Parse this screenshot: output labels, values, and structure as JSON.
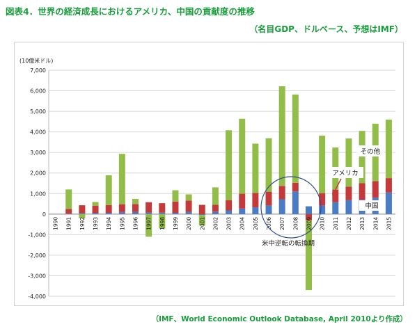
{
  "title": "図表4．世界の経済成長におけるアメリカ、中国の貢献度の推移",
  "subtitle": "（名目GDP、ドルベース、予想はIMF）",
  "source": "（IMF、World Economic Outlook Database, April 2010より作成）",
  "colors": {
    "china": "#4a7cc4",
    "america": "#c43a3a",
    "other": "#92bd48",
    "accent": "#1a9c3c",
    "circle": "#2f4d8a"
  },
  "chart_data": {
    "type": "bar",
    "stacked": true,
    "ylabel": "(10億米ドル)",
    "ylim": [
      -4000,
      7000
    ],
    "yticks": [
      7000,
      6000,
      5000,
      4000,
      3000,
      2000,
      1000,
      0,
      -1000,
      -2000,
      -3000,
      -4000
    ],
    "ytick_labels": [
      "7,000",
      "6,000",
      "5,000",
      "4,000",
      "3,000",
      "2,000",
      "1,000",
      "0",
      "-1,000",
      "-2,000",
      "-3,000",
      "-4,000"
    ],
    "grid": true,
    "categories": [
      "1990",
      "1991",
      "1992",
      "1993",
      "1994",
      "1995",
      "1996",
      "1997",
      "1998",
      "1999",
      "2000",
      "2001",
      "2002",
      "2003",
      "2004",
      "2005",
      "2006",
      "2007",
      "2008",
      "2009",
      "2010",
      "2011",
      "2012",
      "2013",
      "2014",
      "2015"
    ],
    "series": [
      {
        "name": "中国",
        "values": [
          0,
          20,
          40,
          50,
          60,
          100,
          110,
          80,
          70,
          60,
          110,
          -50,
          120,
          180,
          270,
          330,
          420,
          720,
          1100,
          380,
          420,
          580,
          680,
          700,
          800,
          1050
        ]
      },
      {
        "name": "アメリカ",
        "values": [
          0,
          230,
          390,
          360,
          380,
          380,
          380,
          500,
          460,
          550,
          550,
          450,
          330,
          500,
          720,
          700,
          670,
          650,
          420,
          -300,
          600,
          610,
          650,
          800,
          800,
          700
        ]
      },
      {
        "name": "その他",
        "values": [
          0,
          950,
          -200,
          180,
          1450,
          2450,
          250,
          -1100,
          -700,
          550,
          300,
          -500,
          850,
          3400,
          3650,
          2400,
          2600,
          4850,
          4300,
          -3400,
          2800,
          2050,
          2350,
          2550,
          2800,
          2850
        ]
      }
    ],
    "annotations": [
      "米中逆転の転換期"
    ],
    "series_labels": [
      "その他",
      "アメリカ",
      "中国"
    ]
  }
}
